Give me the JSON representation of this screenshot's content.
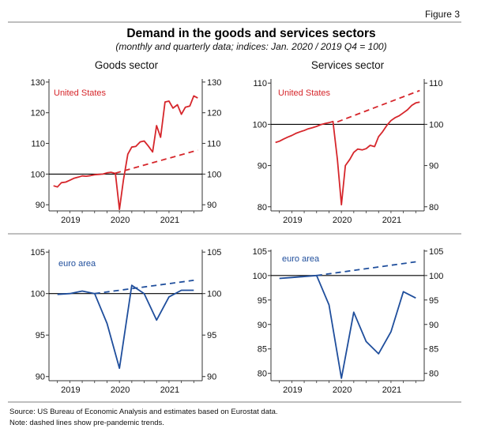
{
  "figure_label": "Figure 3",
  "title": "Demand in the goods and services sectors",
  "subtitle": "(monthly and quarterly data; indices: Jan. 2020 / 2019 Q4 = 100)",
  "column_titles": [
    "Goods sector",
    "Services sector"
  ],
  "notes": [
    "Source: US Bureau of Economic Analysis and estimates based on Eurostat data.",
    "Note: dashed lines show pre-pandemic trends."
  ],
  "colors": {
    "us": "#d6262b",
    "euro": "#1f4e9c",
    "baseline": "#000000",
    "axis": "#333333"
  },
  "chart_data": [
    {
      "type": "line",
      "panel": "goods-us",
      "label": "United States",
      "color_key": "us",
      "xlim": [
        2018.58,
        2021.67
      ],
      "ylim": [
        88,
        131
      ],
      "yticks": [
        90,
        100,
        110,
        120,
        130
      ],
      "xticks": [
        "2019",
        "2020",
        "2021"
      ],
      "xtick_positions": [
        2019.0,
        2020.0,
        2021.0
      ],
      "baseline": 100,
      "series": [
        {
          "style": "solid",
          "x": [
            2018.67,
            2018.75,
            2018.83,
            2018.92,
            2019.0,
            2019.08,
            2019.17,
            2019.25,
            2019.33,
            2019.42,
            2019.5,
            2019.58,
            2019.67,
            2019.75,
            2019.83,
            2019.92,
            2020.0,
            2020.08,
            2020.17,
            2020.25,
            2020.33,
            2020.42,
            2020.5,
            2020.58,
            2020.67,
            2020.75,
            2020.83,
            2020.92,
            2021.0,
            2021.08,
            2021.17,
            2021.25,
            2021.33,
            2021.42,
            2021.5,
            2021.58
          ],
          "y": [
            96.2,
            95.8,
            97.2,
            97.4,
            98.0,
            98.6,
            99.0,
            99.4,
            99.3,
            99.5,
            99.8,
            99.9,
            100.0,
            100.4,
            100.6,
            100.2,
            88.5,
            98.0,
            106.5,
            108.8,
            109.0,
            110.5,
            110.8,
            109.2,
            107.2,
            115.8,
            112.0,
            123.5,
            123.8,
            121.5,
            122.6,
            119.5,
            121.8,
            122.2,
            125.5,
            124.8
          ]
        },
        {
          "style": "dashed",
          "x": [
            2019.92,
            2021.58
          ],
          "y": [
            100.3,
            107.8
          ]
        }
      ]
    },
    {
      "type": "line",
      "panel": "services-us",
      "label": "United States",
      "color_key": "us",
      "xlim": [
        2018.58,
        2021.67
      ],
      "ylim": [
        79,
        111
      ],
      "yticks": [
        80,
        90,
        100,
        110
      ],
      "xticks": [
        "2019",
        "2020",
        "2021"
      ],
      "xtick_positions": [
        2019.0,
        2020.0,
        2021.0
      ],
      "baseline": 100,
      "series": [
        {
          "style": "solid",
          "x": [
            2018.67,
            2018.75,
            2018.83,
            2018.92,
            2019.0,
            2019.08,
            2019.17,
            2019.25,
            2019.33,
            2019.42,
            2019.5,
            2019.58,
            2019.67,
            2019.75,
            2019.83,
            2019.92,
            2020.0,
            2020.08,
            2020.17,
            2020.25,
            2020.33,
            2020.42,
            2020.5,
            2020.58,
            2020.67,
            2020.75,
            2020.83,
            2020.92,
            2021.0,
            2021.08,
            2021.17,
            2021.25,
            2021.33,
            2021.42,
            2021.5,
            2021.58
          ],
          "y": [
            95.6,
            95.9,
            96.4,
            96.9,
            97.3,
            97.8,
            98.2,
            98.5,
            98.9,
            99.2,
            99.5,
            99.9,
            100.2,
            100.4,
            100.7,
            91.5,
            80.5,
            90.0,
            91.5,
            93.2,
            94.0,
            93.8,
            94.1,
            94.9,
            94.6,
            97.0,
            98.2,
            99.8,
            100.9,
            101.6,
            102.1,
            102.8,
            103.5,
            104.6,
            105.2,
            105.4
          ]
        },
        {
          "style": "dashed",
          "x": [
            2019.92,
            2021.58
          ],
          "y": [
            100.6,
            108.2
          ]
        }
      ]
    },
    {
      "type": "line",
      "panel": "goods-euro",
      "label": "euro area",
      "color_key": "euro",
      "xlim": [
        2018.58,
        2021.67
      ],
      "ylim": [
        89.5,
        105.3
      ],
      "yticks": [
        90,
        95,
        100,
        105
      ],
      "xticks": [
        "2019",
        "2020",
        "2021"
      ],
      "xtick_positions": [
        2019.0,
        2020.0,
        2021.0
      ],
      "baseline": 100,
      "series": [
        {
          "style": "solid",
          "x": [
            2018.75,
            2019.0,
            2019.25,
            2019.5,
            2019.75,
            2020.0,
            2020.25,
            2020.5,
            2020.75,
            2021.0,
            2021.25,
            2021.5
          ],
          "y": [
            99.9,
            100.0,
            100.3,
            100.0,
            96.4,
            91.0,
            101.0,
            100.0,
            96.8,
            99.6,
            100.4,
            100.4
          ]
        },
        {
          "style": "dashed",
          "x": [
            2019.5,
            2021.5
          ],
          "y": [
            100.0,
            101.6
          ]
        }
      ]
    },
    {
      "type": "line",
      "panel": "services-euro",
      "label": "euro area",
      "color_key": "euro",
      "xlim": [
        2018.58,
        2021.67
      ],
      "ylim": [
        78.5,
        105.3
      ],
      "yticks": [
        80,
        85,
        90,
        95,
        100,
        105
      ],
      "xticks": [
        "2019",
        "2020",
        "2021"
      ],
      "xtick_positions": [
        2019.0,
        2020.0,
        2021.0
      ],
      "baseline": 100,
      "series": [
        {
          "style": "solid",
          "x": [
            2018.75,
            2019.0,
            2019.25,
            2019.5,
            2019.75,
            2020.0,
            2020.25,
            2020.5,
            2020.75,
            2021.0,
            2021.25,
            2021.5
          ],
          "y": [
            99.4,
            99.6,
            99.8,
            100.0,
            94.0,
            79.0,
            92.5,
            86.5,
            84.0,
            88.5,
            96.7,
            95.4
          ]
        },
        {
          "style": "dashed",
          "x": [
            2019.5,
            2021.5
          ],
          "y": [
            100.0,
            102.8
          ]
        }
      ]
    }
  ]
}
